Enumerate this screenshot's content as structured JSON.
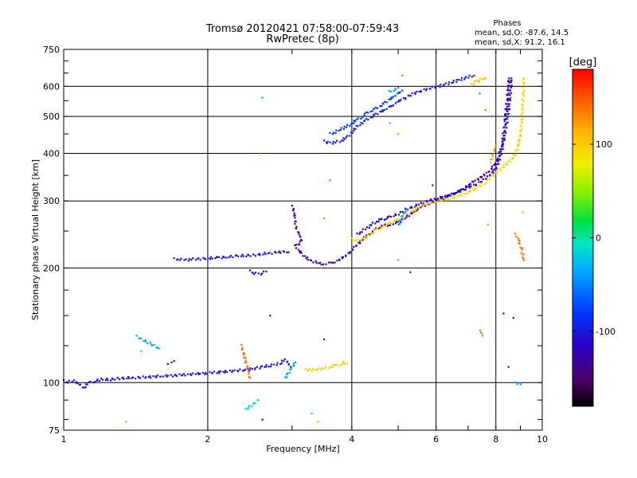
{
  "chart_data": {
    "type": "scatter",
    "title": "Tromsø 20120421 07:58:00-07:59:43",
    "subtitle": "RwPretec (8p)",
    "xlabel": "Frequency [MHz]",
    "ylabel": "Stationary phase Virtual Height [km]",
    "xscale": "log",
    "yscale": "log",
    "xlim": [
      1,
      10
    ],
    "ylim": [
      75,
      750
    ],
    "xticks": [
      1,
      2,
      4,
      6,
      8,
      10
    ],
    "xtick_labels": [
      "1",
      "2",
      "4",
      "6",
      "8",
      "10"
    ],
    "yticks": [
      75,
      100,
      200,
      300,
      400,
      500,
      600,
      750
    ],
    "ytick_labels": [
      "75",
      "100",
      "200",
      "300",
      "400",
      "500",
      "600",
      "750"
    ],
    "grid": true,
    "phase_stats": {
      "heading": "Phases",
      "line_o": "mean, sd,O: -87.6, 14.5",
      "line_x": "mean, sd,X:  91.2, 16.1"
    },
    "colorbar": {
      "label": "[deg]",
      "range": [
        -180,
        180
      ],
      "ticks": [
        100,
        0,
        -100
      ],
      "tick_labels": [
        "100",
        "0",
        "-100"
      ]
    },
    "series": [
      {
        "phase": -105,
        "points": [
          [
            1.0,
            101
          ],
          [
            1.02,
            100.5
          ],
          [
            1.05,
            101
          ],
          [
            1.08,
            99
          ],
          [
            1.1,
            97
          ],
          [
            1.13,
            100
          ],
          [
            1.16,
            101
          ],
          [
            1.2,
            102
          ],
          [
            1.25,
            102
          ],
          [
            1.3,
            102.5
          ],
          [
            1.35,
            103
          ],
          [
            1.4,
            103
          ],
          [
            1.5,
            103.5
          ],
          [
            1.6,
            104
          ],
          [
            1.7,
            104.5
          ],
          [
            1.8,
            105
          ],
          [
            1.9,
            105.5
          ],
          [
            2.0,
            106
          ],
          [
            2.1,
            106.5
          ],
          [
            2.2,
            107
          ],
          [
            2.3,
            107.5
          ],
          [
            2.4,
            108
          ],
          [
            2.5,
            109
          ],
          [
            2.6,
            110
          ],
          [
            2.7,
            111
          ],
          [
            2.8,
            112
          ],
          [
            2.85,
            113
          ],
          [
            2.9,
            115
          ],
          [
            2.95,
            112
          ],
          [
            2.98,
            110
          ]
        ]
      },
      {
        "phase": -110,
        "points": [
          [
            1.65,
            112
          ],
          [
            1.68,
            113
          ],
          [
            1.7,
            114
          ]
        ]
      },
      {
        "phase": -100,
        "points": [
          [
            1.7,
            211
          ],
          [
            1.75,
            211
          ],
          [
            1.8,
            210
          ],
          [
            1.85,
            211
          ],
          [
            2.0,
            212
          ],
          [
            2.1,
            213
          ],
          [
            2.2,
            214
          ],
          [
            2.3,
            215
          ],
          [
            2.4,
            216
          ],
          [
            2.5,
            216
          ],
          [
            2.6,
            218
          ],
          [
            2.7,
            219
          ],
          [
            2.8,
            220
          ],
          [
            2.9,
            221
          ],
          [
            2.95,
            220
          ]
        ]
      },
      {
        "phase": -115,
        "points": [
          [
            2.45,
            196
          ],
          [
            2.5,
            194
          ],
          [
            2.55,
            193
          ],
          [
            2.6,
            194
          ],
          [
            2.65,
            196
          ]
        ]
      },
      {
        "phase": -125,
        "points": [
          [
            3.0,
            290
          ],
          [
            3.02,
            285
          ],
          [
            3.04,
            270
          ],
          [
            3.06,
            255
          ],
          [
            3.1,
            245
          ],
          [
            3.15,
            236
          ],
          [
            3.1,
            232
          ],
          [
            3.05,
            228
          ],
          [
            3.1,
            222
          ],
          [
            3.15,
            218
          ],
          [
            3.2,
            213
          ],
          [
            3.3,
            209
          ],
          [
            3.4,
            206
          ],
          [
            3.5,
            205
          ],
          [
            3.6,
            206
          ],
          [
            3.7,
            208
          ],
          [
            3.8,
            212
          ],
          [
            3.9,
            216
          ],
          [
            4.0,
            223
          ],
          [
            4.1,
            230
          ],
          [
            4.2,
            237
          ],
          [
            4.3,
            243
          ],
          [
            4.4,
            248
          ],
          [
            4.5,
            253
          ],
          [
            4.6,
            257
          ],
          [
            4.7,
            259
          ],
          [
            4.8,
            260
          ],
          [
            5.0,
            264
          ],
          [
            5.2,
            272
          ],
          [
            5.4,
            282
          ],
          [
            5.6,
            290
          ],
          [
            5.8,
            296
          ],
          [
            6.0,
            301
          ],
          [
            6.2,
            305
          ],
          [
            6.4,
            310
          ],
          [
            6.6,
            316
          ],
          [
            6.8,
            322
          ],
          [
            7.0,
            330
          ],
          [
            7.2,
            338
          ],
          [
            7.4,
            345
          ],
          [
            7.6,
            352
          ],
          [
            7.8,
            363
          ],
          [
            8.0,
            378
          ],
          [
            8.1,
            392
          ],
          [
            8.2,
            410
          ],
          [
            8.25,
            425
          ],
          [
            8.3,
            450
          ],
          [
            8.35,
            480
          ],
          [
            8.4,
            520
          ],
          [
            8.45,
            560
          ],
          [
            8.5,
            600
          ],
          [
            8.52,
            630
          ]
        ]
      },
      {
        "phase": -110,
        "points": [
          [
            4.1,
            245
          ],
          [
            4.2,
            250
          ],
          [
            4.3,
            255
          ],
          [
            4.4,
            260
          ],
          [
            4.5,
            265
          ],
          [
            4.6,
            268
          ],
          [
            4.7,
            270
          ],
          [
            4.8,
            272
          ],
          [
            5.0,
            278
          ],
          [
            5.2,
            285
          ],
          [
            5.4,
            291
          ],
          [
            5.6,
            296
          ],
          [
            5.8,
            301
          ],
          [
            6.0,
            304
          ],
          [
            6.3,
            309
          ],
          [
            6.6,
            315
          ],
          [
            7.0,
            325
          ],
          [
            7.3,
            333
          ],
          [
            7.6,
            342
          ],
          [
            7.8,
            352
          ],
          [
            8.0,
            365
          ],
          [
            8.1,
            380
          ],
          [
            8.2,
            400
          ],
          [
            8.3,
            430
          ],
          [
            8.4,
            470
          ],
          [
            8.5,
            520
          ],
          [
            8.55,
            560
          ],
          [
            8.6,
            600
          ],
          [
            8.62,
            630
          ]
        ]
      },
      {
        "phase": -95,
        "points": [
          [
            3.5,
            430
          ],
          [
            3.55,
            428
          ],
          [
            3.6,
            426
          ],
          [
            3.7,
            428
          ],
          [
            3.8,
            432
          ],
          [
            3.9,
            440
          ],
          [
            4.0,
            455
          ],
          [
            4.1,
            470
          ],
          [
            4.2,
            482
          ],
          [
            4.3,
            490
          ],
          [
            4.4,
            500
          ],
          [
            4.5,
            508
          ],
          [
            4.6,
            515
          ],
          [
            4.7,
            522
          ],
          [
            4.8,
            530
          ],
          [
            4.9,
            538
          ],
          [
            5.0,
            548
          ],
          [
            5.2,
            562
          ],
          [
            5.4,
            575
          ],
          [
            5.6,
            585
          ],
          [
            5.8,
            592
          ],
          [
            6.0,
            598
          ],
          [
            6.2,
            605
          ],
          [
            6.4,
            612
          ],
          [
            6.6,
            620
          ],
          [
            6.8,
            628
          ],
          [
            7.0,
            635
          ],
          [
            7.2,
            640
          ]
        ]
      },
      {
        "phase": -80,
        "points": [
          [
            3.6,
            450
          ],
          [
            3.7,
            455
          ],
          [
            3.8,
            465
          ],
          [
            3.9,
            470
          ],
          [
            4.0,
            480
          ],
          [
            4.1,
            490
          ],
          [
            4.2,
            500
          ],
          [
            4.3,
            510
          ],
          [
            4.4,
            520
          ],
          [
            4.5,
            525
          ],
          [
            4.6,
            535
          ],
          [
            4.7,
            545
          ],
          [
            4.8,
            555
          ],
          [
            4.9,
            565
          ],
          [
            5.0,
            575
          ],
          [
            5.1,
            585
          ]
        ]
      },
      {
        "phase": 100,
        "points": [
          [
            3.2,
            108
          ],
          [
            3.3,
            108
          ],
          [
            3.4,
            108.5
          ],
          [
            3.5,
            109
          ],
          [
            3.6,
            110
          ],
          [
            3.7,
            111
          ],
          [
            3.8,
            112
          ],
          [
            3.85,
            113
          ],
          [
            3.9,
            112
          ]
        ]
      },
      {
        "phase": 95,
        "points": [
          [
            4.0,
            238
          ],
          [
            4.1,
            236
          ],
          [
            4.2,
            238
          ],
          [
            4.3,
            242
          ],
          [
            4.4,
            247
          ],
          [
            4.5,
            252
          ],
          [
            4.6,
            256
          ],
          [
            4.8,
            262
          ],
          [
            5.0,
            270
          ],
          [
            5.2,
            278
          ],
          [
            5.4,
            285
          ],
          [
            5.6,
            291
          ],
          [
            5.8,
            296
          ],
          [
            6.0,
            299
          ],
          [
            6.3,
            303
          ],
          [
            6.6,
            308
          ],
          [
            7.0,
            316
          ],
          [
            7.3,
            325
          ],
          [
            7.6,
            335
          ],
          [
            7.8,
            345
          ],
          [
            8.0,
            355
          ],
          [
            8.2,
            365
          ],
          [
            8.4,
            375
          ],
          [
            8.6,
            385
          ],
          [
            8.8,
            400
          ],
          [
            8.9,
            420
          ],
          [
            9.0,
            450
          ],
          [
            9.05,
            490
          ],
          [
            9.1,
            530
          ],
          [
            9.12,
            580
          ],
          [
            9.15,
            630
          ]
        ]
      },
      {
        "phase": 105,
        "points": [
          [
            7.1,
            605
          ],
          [
            7.2,
            612
          ],
          [
            7.3,
            618
          ],
          [
            7.4,
            622
          ],
          [
            7.5,
            628
          ],
          [
            7.6,
            632
          ]
        ]
      },
      {
        "phase": -40,
        "points": [
          [
            1.42,
            132
          ],
          [
            1.58,
            123
          ],
          [
            2.9,
            103
          ],
          [
            3.05,
            113
          ],
          [
            5.0,
            260
          ],
          [
            5.2,
            285
          ],
          [
            3.6,
            340
          ],
          [
            4.8,
            580
          ],
          [
            5.0,
            595
          ],
          [
            2.6,
            560
          ],
          [
            7.4,
            575
          ],
          [
            8.8,
            100
          ],
          [
            9.0,
            99
          ]
        ]
      },
      {
        "phase": 140,
        "points": [
          [
            2.35,
            125
          ],
          [
            2.45,
            103
          ],
          [
            2.58,
            400
          ],
          [
            3.5,
            270
          ],
          [
            7.4,
            137
          ],
          [
            7.5,
            133
          ],
          [
            8.6,
            560
          ],
          [
            8.8,
            245
          ],
          [
            8.9,
            238
          ],
          [
            9.0,
            230
          ],
          [
            9.1,
            218
          ],
          [
            9.15,
            210
          ],
          [
            7.6,
            520
          ],
          [
            5.1,
            640
          ],
          [
            4.8,
            480
          ]
        ]
      },
      {
        "phase": -10,
        "points": [
          [
            2.4,
            85
          ],
          [
            2.55,
            90
          ],
          [
            3.3,
            83
          ],
          [
            1.45,
            121
          ],
          [
            5.0,
            210
          ]
        ]
      },
      {
        "phase": -135,
        "points": [
          [
            2.6,
            80
          ],
          [
            2.7,
            150
          ],
          [
            3.5,
            130
          ],
          [
            8.3,
            152
          ],
          [
            8.5,
            110
          ],
          [
            8.7,
            148
          ],
          [
            5.3,
            195
          ],
          [
            5.9,
            330
          ]
        ]
      },
      {
        "phase": 120,
        "points": [
          [
            1.35,
            79
          ],
          [
            3.4,
            79
          ],
          [
            7.7,
            260
          ],
          [
            7.8,
            380
          ],
          [
            8.0,
            420
          ],
          [
            9.1,
            280
          ],
          [
            5.0,
            450
          ]
        ]
      }
    ]
  }
}
